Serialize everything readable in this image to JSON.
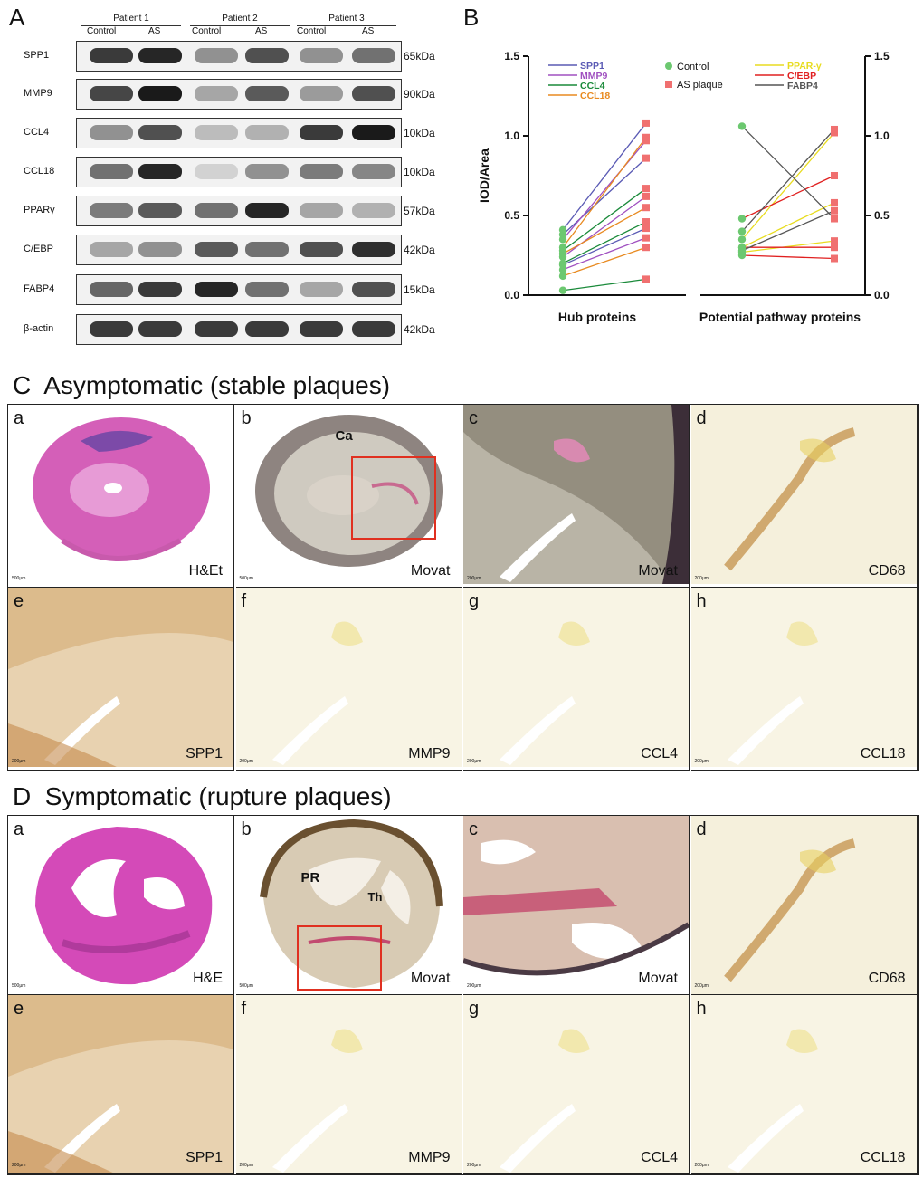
{
  "panelA": {
    "letter": "A",
    "patients": [
      "Patient 1",
      "Patient 2",
      "Patient 3"
    ],
    "conditions": [
      "Control",
      "AS",
      "Control",
      "AS",
      "Control",
      "AS"
    ],
    "rows": [
      {
        "name": "SPP1",
        "kda": "65kDa"
      },
      {
        "name": "MMP9",
        "kda": "90kDa"
      },
      {
        "name": "CCL4",
        "kda": "10kDa"
      },
      {
        "name": "CCL18",
        "kda": "10kDa"
      },
      {
        "name": "PPARγ",
        "kda": "57kDa"
      },
      {
        "name": "C/EBP",
        "kda": "42kDa"
      },
      {
        "name": "FABP4",
        "kda": "15kDa"
      },
      {
        "name": "β-actin",
        "kda": "42kDa"
      }
    ]
  },
  "panelB": {
    "letter": "B",
    "chart_data": {
      "type": "line",
      "ylabel": "IOD/Area",
      "ylim": [
        0,
        1.5
      ],
      "yticks": [
        "0.0",
        "0.5",
        "1.0",
        "1.5"
      ],
      "groups": [
        "Hub proteins",
        "Potential pathway proteins"
      ],
      "legend_left": [
        "SPP1",
        "MMP9",
        "CCL4",
        "CCL18"
      ],
      "legend_points": [
        "Control",
        "AS plaque"
      ],
      "legend_right": [
        "PPAR-γ",
        "C/EBP",
        "FABP4"
      ],
      "colors": {
        "SPP1": "#5a5ab4",
        "MMP9": "#a050c0",
        "CCL4": "#1a8a3a",
        "CCL18": "#e88a20",
        "PPAR-γ": "#e8dc20",
        "C/EBP": "#e02020",
        "FABP4": "#555555",
        "Control": "#6cc870",
        "AS plaque": "#f07070"
      },
      "series": [
        {
          "group": "Hub proteins",
          "name": "SPP1",
          "control": [
            0.41,
            0.38,
            0.19
          ],
          "as": [
            1.08,
            0.86,
            0.42
          ]
        },
        {
          "group": "Hub proteins",
          "name": "MMP9",
          "control": [
            0.35,
            0.24,
            0.16
          ],
          "as": [
            0.97,
            0.62,
            0.36
          ]
        },
        {
          "group": "Hub proteins",
          "name": "CCL4",
          "control": [
            0.28,
            0.2,
            0.03
          ],
          "as": [
            0.67,
            0.46,
            0.1
          ]
        },
        {
          "group": "Hub proteins",
          "name": "CCL18",
          "control": [
            0.3,
            0.26,
            0.12
          ],
          "as": [
            0.99,
            0.55,
            0.3
          ]
        },
        {
          "group": "Potential pathway proteins",
          "name": "PPAR-γ",
          "control": [
            0.35,
            0.3,
            0.27
          ],
          "as": [
            1.02,
            0.58,
            0.34
          ]
        },
        {
          "group": "Potential pathway proteins",
          "name": "C/EBP",
          "control": [
            0.48,
            0.3,
            0.25
          ],
          "as": [
            0.75,
            0.3,
            0.23
          ]
        },
        {
          "group": "Potential pathway proteins",
          "name": "FABP4",
          "control": [
            1.06,
            0.4,
            0.28
          ],
          "as": [
            0.48,
            1.04,
            0.53
          ]
        }
      ]
    }
  },
  "panelC": {
    "letter": "C",
    "title": "Asymptomatic (stable plaques)",
    "cells": [
      {
        "letter": "a",
        "stain": "H&Et",
        "scale": "500μm",
        "kind": "he-round"
      },
      {
        "letter": "b",
        "stain": "Movat",
        "scale": "500μm",
        "kind": "movat-round",
        "annot": "Ca"
      },
      {
        "letter": "c",
        "stain": "Movat",
        "scale": "200μm",
        "kind": "movat-zoom"
      },
      {
        "letter": "d",
        "stain": "CD68",
        "scale": "200μm",
        "kind": "ihc-light"
      },
      {
        "letter": "e",
        "stain": "SPP1",
        "scale": "200μm",
        "kind": "ihc-strong"
      },
      {
        "letter": "f",
        "stain": "MMP9",
        "scale": "200μm",
        "kind": "ihc-faint"
      },
      {
        "letter": "g",
        "stain": "CCL4",
        "scale": "200μm",
        "kind": "ihc-faint"
      },
      {
        "letter": "h",
        "stain": "CCL18",
        "scale": "200μm",
        "kind": "ihc-faint"
      }
    ]
  },
  "panelD": {
    "letter": "D",
    "title": "Symptomatic (rupture plaques)",
    "cells": [
      {
        "letter": "a",
        "stain": "H&E",
        "scale": "500μm",
        "kind": "he-rupture"
      },
      {
        "letter": "b",
        "stain": "Movat",
        "scale": "500μm",
        "kind": "movat-rupture",
        "annot": "PR",
        "annot2": "Th"
      },
      {
        "letter": "c",
        "stain": "Movat",
        "scale": "200μm",
        "kind": "movat-zoom2"
      },
      {
        "letter": "d",
        "stain": "CD68",
        "scale": "200μm",
        "kind": "ihc-light"
      },
      {
        "letter": "e",
        "stain": "SPP1",
        "scale": "200μm",
        "kind": "ihc-strong"
      },
      {
        "letter": "f",
        "stain": "MMP9",
        "scale": "200μm",
        "kind": "ihc-faint"
      },
      {
        "letter": "g",
        "stain": "CCL4",
        "scale": "200μm",
        "kind": "ihc-faint"
      },
      {
        "letter": "h",
        "stain": "CCL18",
        "scale": "200μm",
        "kind": "ihc-faint"
      }
    ]
  }
}
